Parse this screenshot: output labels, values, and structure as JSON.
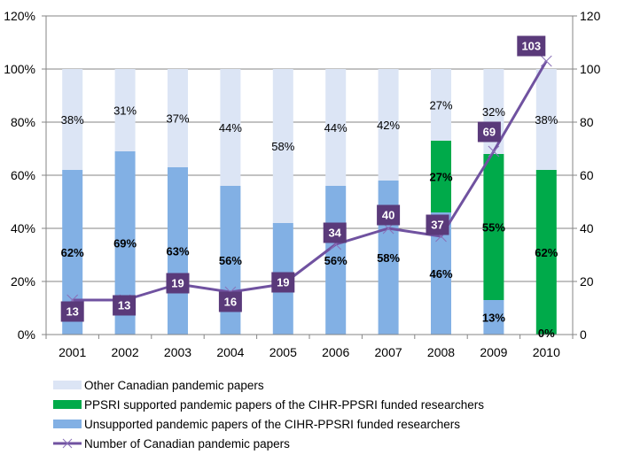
{
  "chart_data": {
    "type": "bar",
    "subtype": "stacked-percent-bar-with-line",
    "title": "",
    "xlabel": "",
    "ylabel": "",
    "y2label": "",
    "categories": [
      "2001",
      "2002",
      "2003",
      "2004",
      "2005",
      "2006",
      "2007",
      "2008",
      "2009",
      "2010"
    ],
    "ylim": [
      0,
      120
    ],
    "y_ticks": [
      "0%",
      "20%",
      "40%",
      "60%",
      "80%",
      "100%",
      "120%"
    ],
    "y2lim": [
      0,
      120
    ],
    "y2_ticks": [
      "0",
      "20",
      "40",
      "60",
      "80",
      "100",
      "120"
    ],
    "grid": true,
    "legend_position": "bottom",
    "series": [
      {
        "name": "Unsupported pandemic papers of the CIHR-PPSRI funded researchers",
        "kind": "bar",
        "color": "#82b0e4",
        "values": [
          62,
          69,
          63,
          56,
          42,
          56,
          58,
          46,
          13,
          0
        ],
        "labels": [
          "62%",
          "69%",
          "63%",
          "56%",
          "42%",
          "56%",
          "58%",
          "46%",
          "13%",
          "0%"
        ]
      },
      {
        "name": "PPSRI supported pandemic papers of the CIHR-PPSRI funded researchers",
        "kind": "bar",
        "color": "#00aa4a",
        "values": [
          0,
          0,
          0,
          0,
          0,
          0,
          0,
          27,
          55,
          62
        ],
        "labels": [
          "",
          "",
          "",
          "",
          "",
          "",
          "",
          "27%",
          "55%",
          "62%"
        ]
      },
      {
        "name": "Other Canadian pandemic papers",
        "kind": "bar",
        "color": "#dce5f5",
        "values": [
          38,
          31,
          37,
          44,
          58,
          44,
          42,
          27,
          32,
          38
        ],
        "labels": [
          "38%",
          "31%",
          "37%",
          "44%",
          "58%",
          "44%",
          "42%",
          "27%",
          "32%",
          "38%"
        ]
      },
      {
        "name": "Number of Canadian pandemic papers",
        "kind": "line",
        "axis": "right",
        "color": "#7052a0",
        "label_bg": "#5a3a7a",
        "values": [
          13,
          13,
          19,
          16,
          19,
          34,
          40,
          37,
          69,
          103
        ],
        "labels": [
          "13",
          "13",
          "19",
          "16",
          "19",
          "34",
          "40",
          "37",
          "69",
          "103"
        ]
      }
    ]
  },
  "legend": {
    "items": [
      {
        "label": "Other Canadian pandemic papers",
        "color": "#dce5f5"
      },
      {
        "label": "PPSRI supported pandemic papers of the CIHR-PPSRI funded researchers",
        "color": "#00aa4a"
      },
      {
        "label": "Unsupported pandemic papers of the CIHR-PPSRI funded researchers",
        "color": "#82b0e4"
      },
      {
        "label": "Number of Canadian pandemic papers",
        "color": "#7052a0"
      }
    ]
  }
}
